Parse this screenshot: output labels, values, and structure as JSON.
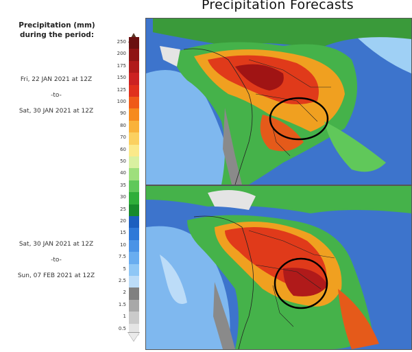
{
  "title": "Precipitation Forecasts",
  "legend": {
    "title_line1": "Precipitation (mm)",
    "title_line2": "during the period:",
    "levels": [
      "250",
      "200",
      "175",
      "150",
      "125",
      "100",
      "90",
      "80",
      "70",
      "60",
      "50",
      "40",
      "35",
      "30",
      "25",
      "20",
      "15",
      "10",
      "7.5",
      "5",
      "2.5",
      "2",
      "1.5",
      "1",
      "0.5"
    ],
    "colors": [
      "#6a1010",
      "#8f1414",
      "#b01a1a",
      "#cc2222",
      "#e0301c",
      "#ef5a18",
      "#f68a1e",
      "#f9b23a",
      "#fbd060",
      "#fbe98a",
      "#d9f0a0",
      "#9edf7c",
      "#60c85a",
      "#2fae3a",
      "#178a2c",
      "#1c5fbf",
      "#2f79d8",
      "#4a93e6",
      "#69adf0",
      "#8fc7f6",
      "#bcdcf8",
      "#808080",
      "#a8a8a8",
      "#cacaca",
      "#e4e4e4"
    ]
  },
  "periods": [
    {
      "start": "Fri, 22 JAN 2021 at 12Z",
      "sep": "-to-",
      "end": "Sat, 30 JAN 2021 at 12Z"
    },
    {
      "start": "Sat, 30 JAN 2021 at 12Z",
      "sep": "-to-",
      "end": "Sun, 07 FEB 2021 at 12Z"
    }
  ]
}
